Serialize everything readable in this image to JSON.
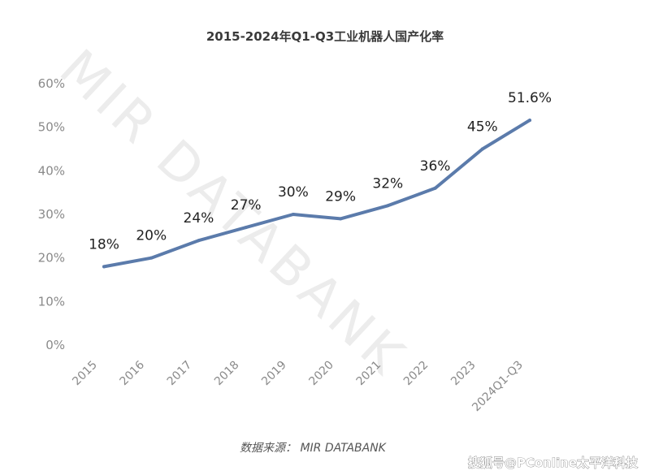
{
  "watermark": "MIR DATABANK",
  "source_note": "数据来源：  MIR DATABANK",
  "credit": "搜狐号@PConline太平洋科技",
  "colors": {
    "line": "#5b7bab",
    "text": "#222222",
    "axis_text": "#8a8a8a",
    "watermark": "#ececec"
  },
  "chart_data": {
    "type": "line",
    "title": "2015-2024年Q1-Q3工业机器人国产化率",
    "xlabel": "",
    "ylabel": "",
    "categories": [
      "2015",
      "2016",
      "2017",
      "2018",
      "2019",
      "2020",
      "2021",
      "2022",
      "2023",
      "2024Q1-Q3"
    ],
    "series": [
      {
        "values": [
          18,
          20,
          24,
          27,
          30,
          29,
          32,
          36,
          45,
          51.6
        ]
      }
    ],
    "data_labels": [
      "18%",
      "20%",
      "24%",
      "27%",
      "30%",
      "29%",
      "32%",
      "36%",
      "45%",
      "51.6%"
    ],
    "y_ticks": [
      "0%",
      "10%",
      "20%",
      "30%",
      "40%",
      "50%",
      "60%"
    ],
    "ylim": [
      0,
      60
    ],
    "grid": false,
    "legend": "none"
  }
}
